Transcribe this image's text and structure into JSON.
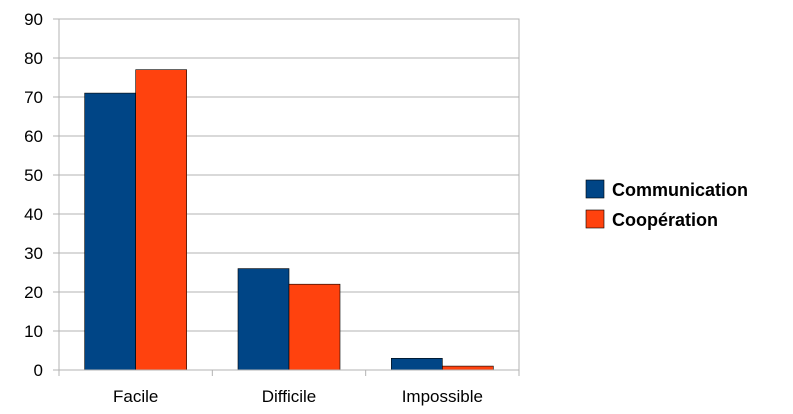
{
  "chart_data": {
    "type": "bar",
    "categories": [
      "Facile",
      "Difficile",
      "Impossible"
    ],
    "series": [
      {
        "name": "Communication",
        "values": [
          71,
          26,
          3
        ],
        "color": "#004586"
      },
      {
        "name": "Coopération",
        "values": [
          77,
          22,
          1
        ],
        "color": "#ff420e"
      }
    ],
    "ylim": [
      0,
      90
    ],
    "yticks": [
      "0",
      "10",
      "20",
      "30",
      "40",
      "50",
      "60",
      "70",
      "80",
      "90"
    ],
    "grid": true,
    "legend": "right"
  }
}
